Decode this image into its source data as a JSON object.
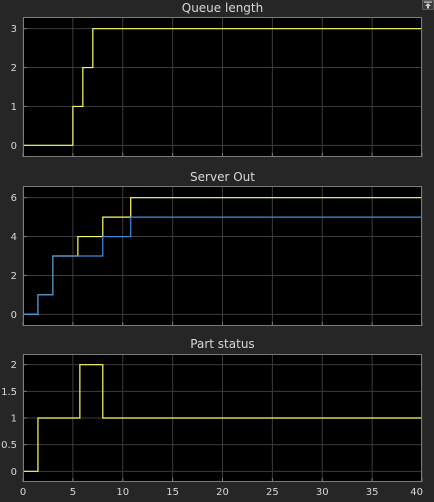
{
  "colors": {
    "figure_bg": "#262626",
    "axes_bg": "#000000",
    "grid": "#3c3c3c",
    "frame": "#7a7a7a",
    "text": "#d7d7d7",
    "series_yellow": "#ffff66",
    "series_blue": "#3d8fe0"
  },
  "toolbar": {
    "dock_icon": "undock-arrow-icon"
  },
  "chart_data": [
    {
      "type": "line",
      "title": "Queue length",
      "xlim": [
        0,
        40
      ],
      "ylim": [
        -0.3,
        3.3
      ],
      "yticks": [
        0,
        1,
        2,
        3
      ],
      "grid": true,
      "series": [
        {
          "color": "#ffff66",
          "step": true,
          "points": [
            [
              0,
              0
            ],
            [
              5,
              0
            ],
            [
              5,
              1
            ],
            [
              6,
              1
            ],
            [
              6,
              2
            ],
            [
              7,
              2
            ],
            [
              7,
              3
            ],
            [
              40,
              3
            ]
          ]
        }
      ]
    },
    {
      "type": "line",
      "title": "Server Out",
      "xlim": [
        0,
        40
      ],
      "ylim": [
        -0.6,
        6.6
      ],
      "yticks": [
        0,
        2,
        4,
        6
      ],
      "grid": true,
      "series": [
        {
          "color": "#ffff66",
          "step": true,
          "points": [
            [
              0,
              0
            ],
            [
              1.5,
              0
            ],
            [
              1.5,
              1
            ],
            [
              3,
              1
            ],
            [
              3,
              3
            ],
            [
              5.5,
              3
            ],
            [
              5.5,
              4
            ],
            [
              8,
              4
            ],
            [
              8,
              5
            ],
            [
              10.8,
              5
            ],
            [
              10.8,
              6
            ],
            [
              40,
              6
            ]
          ]
        },
        {
          "color": "#3d8fe0",
          "step": true,
          "points": [
            [
              0,
              0
            ],
            [
              1.5,
              0
            ],
            [
              1.5,
              1
            ],
            [
              3,
              1
            ],
            [
              3,
              3
            ],
            [
              8,
              3
            ],
            [
              8,
              4
            ],
            [
              10.8,
              4
            ],
            [
              10.8,
              5
            ],
            [
              40,
              5
            ]
          ]
        }
      ]
    },
    {
      "type": "line",
      "title": "Part status",
      "xlim": [
        0,
        40
      ],
      "ylim": [
        -0.2,
        2.2
      ],
      "yticks": [
        0,
        0.5,
        1,
        1.5,
        2
      ],
      "xticks": [
        0,
        5,
        10,
        15,
        20,
        25,
        30,
        35,
        40
      ],
      "grid": true,
      "series": [
        {
          "color": "#ffff66",
          "step": true,
          "points": [
            [
              0,
              0
            ],
            [
              1.5,
              0
            ],
            [
              1.5,
              1
            ],
            [
              5.7,
              1
            ],
            [
              5.7,
              2
            ],
            [
              8,
              2
            ],
            [
              8,
              1
            ],
            [
              40,
              1
            ]
          ]
        }
      ]
    }
  ]
}
